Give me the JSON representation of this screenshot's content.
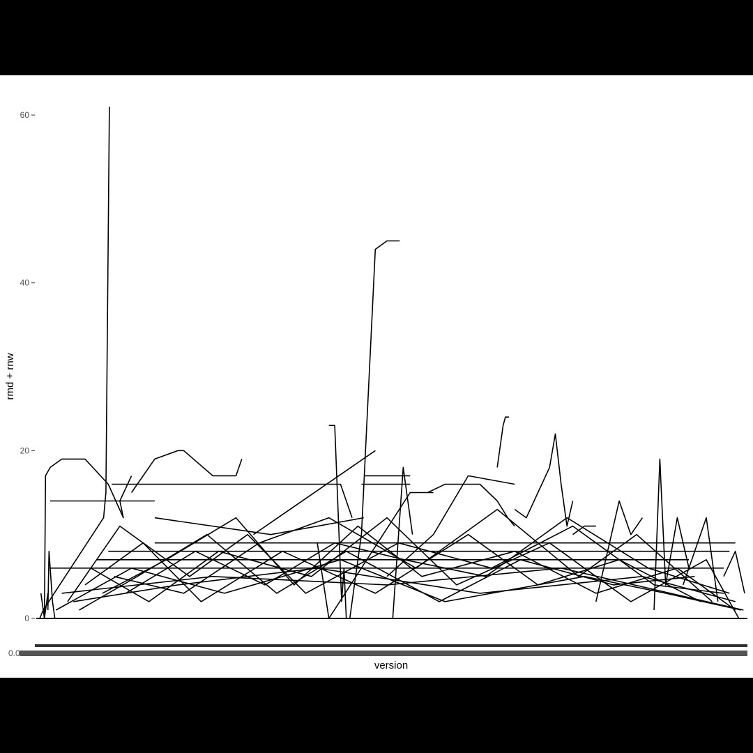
{
  "chart_data": {
    "type": "line",
    "title": "",
    "xlabel": "version",
    "ylabel": "rmd + rnw",
    "x_tick_label_first": "0.0",
    "y_ticks": [
      "0",
      "20",
      "40",
      "60"
    ],
    "ylim": [
      0,
      61
    ],
    "grid": false,
    "legend": "none",
    "line_color": "#000000",
    "series": [
      {
        "x": [
          1,
          4,
          56,
          58,
          61
        ],
        "y": [
          0,
          1,
          12,
          15,
          61
        ]
      },
      {
        "x": [
          5,
          6,
          10,
          20,
          40,
          60,
          73,
          70,
          80
        ],
        "y": [
          0,
          17,
          18,
          19,
          19,
          16,
          12,
          14,
          17
        ]
      },
      {
        "x": [
          80,
          100,
          120,
          125,
          150,
          170,
          175
        ],
        "y": [
          15,
          19,
          20,
          20,
          17,
          17,
          19
        ]
      },
      {
        "x": [
          10,
          50,
          80,
          100
        ],
        "y": [
          14,
          14,
          14,
          14
        ]
      },
      {
        "x": [
          63,
          260,
          270
        ],
        "y": [
          16,
          16,
          12
        ]
      },
      {
        "x": [
          100,
          200,
          280
        ],
        "y": [
          12,
          10,
          12
        ]
      },
      {
        "x": [
          185,
          290
        ],
        "y": [
          10,
          20
        ]
      },
      {
        "x": [
          240,
          250,
          320,
          340
        ],
        "y": [
          9,
          0,
          15,
          15
        ]
      },
      {
        "x": [
          250,
          255,
          261,
          263,
          265,
          268,
          273,
          278,
          290,
          300,
          311
        ],
        "y": [
          23,
          23,
          2,
          6,
          0,
          0,
          5,
          10,
          44,
          45,
          45
        ]
      },
      {
        "x": [
          281,
          320
        ],
        "y": [
          17,
          17
        ]
      },
      {
        "x": [
          278,
          320
        ],
        "y": [
          16,
          16
        ]
      },
      {
        "x": [
          305,
          314,
          322
        ],
        "y": [
          0,
          18,
          10
        ]
      },
      {
        "x": [
          300,
          340,
          370,
          410
        ],
        "y": [
          5,
          10,
          17,
          16
        ]
      },
      {
        "x": [
          335,
          350,
          380,
          395,
          404,
          410
        ],
        "y": [
          15,
          16,
          16,
          14,
          12,
          11
        ]
      },
      {
        "x": [
          395,
          400,
          402,
          405
        ],
        "y": [
          18,
          23,
          24,
          24
        ]
      },
      {
        "x": [
          410,
          420,
          440,
          445,
          450,
          455,
          460
        ],
        "y": [
          13,
          12,
          18,
          22,
          16,
          11,
          14
        ]
      },
      {
        "x": [
          460,
          470,
          480
        ],
        "y": [
          10,
          11,
          11
        ]
      },
      {
        "x": [
          480,
          500,
          510,
          520
        ],
        "y": [
          2,
          14,
          10,
          12
        ]
      },
      {
        "x": [
          530,
          535,
          540,
          550,
          560
        ],
        "y": [
          1,
          19,
          4,
          12,
          6
        ]
      },
      {
        "x": [
          555,
          565,
          575,
          585
        ],
        "y": [
          4,
          8,
          12,
          2
        ]
      },
      {
        "x": [
          590,
          600,
          608
        ],
        "y": [
          5,
          8,
          3
        ]
      },
      {
        "x": [
          100,
          300,
          600
        ],
        "y": [
          9,
          9,
          9
        ]
      },
      {
        "x": [
          60,
          280,
          595
        ],
        "y": [
          8,
          8,
          8
        ]
      },
      {
        "x": [
          50,
          330,
          560
        ],
        "y": [
          7,
          7,
          7
        ]
      },
      {
        "x": [
          10,
          240,
          590
        ],
        "y": [
          6,
          6,
          6
        ]
      },
      {
        "x": [
          20,
          150,
          300,
          450,
          607
        ],
        "y": [
          3,
          5,
          4,
          6,
          1
        ]
      },
      {
        "x": [
          30,
          120,
          240,
          380,
          520,
          600
        ],
        "y": [
          2,
          4,
          6,
          3,
          5,
          2
        ]
      },
      {
        "x": [
          15,
          80,
          160,
          260,
          350,
          470,
          540,
          605
        ],
        "y": [
          1,
          6,
          3,
          7,
          2,
          5,
          3,
          1
        ]
      },
      {
        "x": [
          40,
          90,
          140,
          210,
          290,
          370,
          430,
          500,
          570
        ],
        "y": [
          4,
          9,
          2,
          8,
          3,
          10,
          4,
          7,
          2
        ]
      },
      {
        "x": [
          25,
          70,
          130,
          180,
          230,
          310,
          390,
          460,
          530,
          590
        ],
        "y": [
          2,
          11,
          5,
          10,
          3,
          9,
          6,
          11,
          4,
          3
        ]
      },
      {
        "x": [
          55,
          110,
          170,
          220,
          275,
          330,
          410,
          480,
          550,
          600
        ],
        "y": [
          3,
          7,
          12,
          4,
          11,
          5,
          8,
          3,
          6,
          1
        ]
      },
      {
        "x": [
          65,
          125,
          190,
          250,
          325,
          395,
          465,
          515,
          580
        ],
        "y": [
          5,
          3,
          9,
          12,
          6,
          13,
          5,
          10,
          2
        ]
      },
      {
        "x": [
          45,
          95,
          155,
          235,
          300,
          360,
          440,
          510,
          575,
          603
        ],
        "y": [
          6,
          2,
          8,
          5,
          12,
          4,
          9,
          2,
          7,
          0
        ]
      },
      {
        "x": [
          35,
          85,
          145,
          205,
          265,
          345,
          415,
          495,
          565
        ],
        "y": [
          1,
          5,
          10,
          3,
          8,
          2,
          7,
          4,
          5
        ]
      },
      {
        "x": [
          75,
          135,
          195,
          255,
          315,
          385,
          455,
          525,
          595
        ],
        "y": [
          3,
          8,
          4,
          9,
          7,
          5,
          12,
          6,
          3
        ]
      },
      {
        "x": [
          2,
          5,
          8
        ],
        "y": [
          3,
          0,
          3
        ]
      },
      {
        "x": [
          8,
          9,
          12,
          14
        ],
        "y": [
          1,
          8,
          2,
          0
        ]
      }
    ]
  }
}
